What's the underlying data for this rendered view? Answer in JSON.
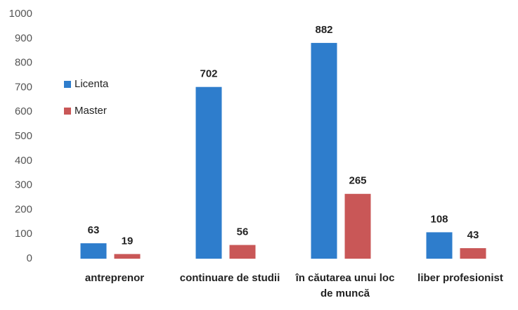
{
  "chart_data": {
    "type": "bar",
    "categories": [
      "antreprenor",
      "continuare de studii",
      "în căutarea unui loc de muncă",
      "liber profesionist"
    ],
    "series": [
      {
        "name": "Licenta",
        "color": "#2e7dcc",
        "values": [
          63,
          702,
          882,
          108
        ]
      },
      {
        "name": "Master",
        "color": "#c95757",
        "values": [
          19,
          56,
          265,
          43
        ]
      }
    ],
    "ylim": [
      0,
      1000
    ],
    "yticks": [
      0,
      100,
      200,
      300,
      400,
      500,
      600,
      700,
      800,
      900,
      1000
    ],
    "grid": false,
    "legend": "left"
  }
}
